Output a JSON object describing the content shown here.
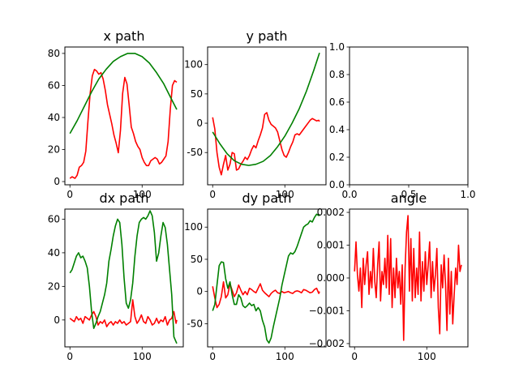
{
  "chart_data": [
    {
      "id": "x-path",
      "type": "line",
      "title": "x path",
      "xlim": [
        -7,
        157
      ],
      "ylim": [
        -2,
        84
      ],
      "xticks": [
        0,
        100
      ],
      "yticks": [
        0,
        20,
        40,
        60,
        80
      ],
      "series": [
        {
          "color": "#ff0000",
          "x": [
            0,
            3,
            7,
            10,
            13,
            16,
            19,
            22,
            25,
            28,
            31,
            34,
            37,
            40,
            43,
            46,
            49,
            52,
            55,
            58,
            61,
            64,
            67,
            70,
            73,
            76,
            79,
            82,
            85,
            88,
            91,
            94,
            97,
            100,
            103,
            106,
            109,
            112,
            115,
            118,
            121,
            124,
            127,
            130,
            133,
            136,
            139,
            142,
            145,
            148
          ],
          "y": [
            2,
            3,
            2,
            4,
            9,
            10,
            12,
            19,
            38,
            55,
            66,
            70,
            69,
            67,
            68,
            64,
            57,
            48,
            42,
            36,
            29,
            24,
            18,
            32,
            55,
            65,
            61,
            48,
            34,
            30,
            25,
            22,
            20,
            15,
            12,
            10,
            10,
            13,
            14,
            15,
            14,
            11,
            12,
            14,
            16,
            25,
            45,
            60,
            63,
            62
          ]
        },
        {
          "color": "#008000",
          "x": [
            0,
            10,
            20,
            30,
            40,
            50,
            60,
            70,
            80,
            90,
            100,
            110,
            120,
            130,
            140,
            148
          ],
          "y": [
            30,
            38,
            47,
            56,
            64,
            70,
            75,
            78,
            80,
            80,
            78,
            74,
            68,
            61,
            52,
            45
          ]
        }
      ]
    },
    {
      "id": "y-path",
      "type": "line",
      "title": "y path",
      "xlim": [
        -7,
        157
      ],
      "ylim": [
        -105,
        130
      ],
      "xticks": [
        0,
        100
      ],
      "yticks": [
        -50,
        0,
        50,
        100
      ],
      "series": [
        {
          "color": "#ff0000",
          "x": [
            0,
            3,
            6,
            9,
            12,
            15,
            18,
            21,
            24,
            27,
            30,
            33,
            36,
            39,
            42,
            45,
            48,
            51,
            54,
            57,
            60,
            63,
            66,
            69,
            72,
            75,
            78,
            81,
            84,
            87,
            90,
            93,
            96,
            99,
            102,
            105,
            108,
            111,
            114,
            117,
            120,
            123,
            126,
            129,
            132,
            135,
            138,
            141,
            144,
            147,
            148
          ],
          "y": [
            10,
            -10,
            -50,
            -75,
            -88,
            -70,
            -55,
            -80,
            -70,
            -50,
            -52,
            -80,
            -78,
            -70,
            -65,
            -58,
            -62,
            -55,
            -45,
            -38,
            -42,
            -30,
            -20,
            -8,
            15,
            18,
            5,
            -2,
            -5,
            -8,
            -15,
            -30,
            -45,
            -55,
            -58,
            -50,
            -40,
            -32,
            -20,
            -18,
            -20,
            -15,
            -10,
            -5,
            0,
            5,
            8,
            6,
            4,
            5,
            3
          ]
        },
        {
          "color": "#008000",
          "x": [
            0,
            10,
            20,
            30,
            40,
            50,
            60,
            70,
            80,
            90,
            100,
            110,
            120,
            130,
            140,
            148
          ],
          "y": [
            -15,
            -35,
            -52,
            -64,
            -70,
            -72,
            -70,
            -65,
            -55,
            -40,
            -22,
            0,
            25,
            55,
            90,
            120
          ]
        }
      ]
    },
    {
      "id": "empty",
      "type": "line",
      "title": "",
      "xlim": [
        0,
        1
      ],
      "ylim": [
        0,
        1
      ],
      "xticks": [
        0.0,
        0.5,
        1.0
      ],
      "xtick_labels": [
        "0.0",
        "0.5",
        "1.0"
      ],
      "yticks": [
        0.0,
        0.2,
        0.4,
        0.6,
        0.8,
        1.0
      ],
      "ytick_labels": [
        "0.0",
        "0.2",
        "0.4",
        "0.6",
        "0.8",
        "1.0"
      ],
      "series": []
    },
    {
      "id": "dx-path",
      "type": "line",
      "title": "dx path",
      "xlim": [
        -7,
        157
      ],
      "ylim": [
        -16,
        66
      ],
      "xticks": [
        0,
        100
      ],
      "yticks": [
        0,
        20,
        40,
        60
      ],
      "series": [
        {
          "color": "#ff0000",
          "x": [
            0,
            3,
            6,
            9,
            12,
            15,
            18,
            21,
            24,
            27,
            30,
            33,
            36,
            39,
            42,
            45,
            48,
            51,
            54,
            57,
            60,
            63,
            66,
            69,
            72,
            75,
            78,
            81,
            84,
            87,
            90,
            93,
            96,
            99,
            102,
            105,
            108,
            111,
            114,
            117,
            120,
            123,
            126,
            129,
            132,
            135,
            138,
            141,
            144,
            147,
            148
          ],
          "y": [
            1,
            0,
            -1,
            2,
            0,
            1,
            -2,
            2,
            1,
            0,
            3,
            5,
            2,
            -3,
            -1,
            -2,
            0,
            -4,
            -2,
            -1,
            -3,
            -1,
            -2,
            0,
            -2,
            -1,
            -3,
            -2,
            -1,
            12,
            2,
            -2,
            0,
            3,
            -1,
            -2,
            2,
            0,
            -3,
            -2,
            1,
            -2,
            0,
            -1,
            2,
            -3,
            0,
            1,
            5,
            -2,
            0
          ]
        },
        {
          "color": "#008000",
          "x": [
            0,
            3,
            6,
            9,
            12,
            15,
            18,
            21,
            24,
            27,
            30,
            33,
            36,
            39,
            42,
            45,
            48,
            51,
            54,
            57,
            60,
            63,
            66,
            69,
            72,
            75,
            78,
            81,
            84,
            87,
            90,
            93,
            96,
            99,
            102,
            105,
            108,
            111,
            114,
            117,
            120,
            123,
            126,
            129,
            132,
            135,
            138,
            141,
            144,
            147,
            148
          ],
          "y": [
            28,
            30,
            34,
            38,
            40,
            37,
            38,
            35,
            31,
            20,
            5,
            -5,
            -2,
            2,
            5,
            10,
            15,
            22,
            35,
            42,
            50,
            56,
            60,
            58,
            45,
            25,
            10,
            7,
            12,
            22,
            38,
            50,
            58,
            60,
            61,
            60,
            62,
            65,
            62,
            52,
            35,
            40,
            50,
            58,
            55,
            45,
            30,
            15,
            -10,
            -13,
            -14
          ]
        }
      ]
    },
    {
      "id": "dy-path",
      "type": "line",
      "title": "dy path",
      "xlim": [
        -7,
        157
      ],
      "ylim": [
        -86,
        128
      ],
      "xticks": [
        0,
        100
      ],
      "yticks": [
        -50,
        0,
        50,
        100
      ],
      "series": [
        {
          "color": "#ff0000",
          "x": [
            0,
            3,
            6,
            9,
            12,
            15,
            18,
            21,
            24,
            27,
            30,
            33,
            36,
            39,
            42,
            45,
            48,
            51,
            54,
            57,
            60,
            63,
            66,
            69,
            72,
            75,
            78,
            81,
            84,
            87,
            90,
            93,
            96,
            99,
            102,
            105,
            108,
            111,
            114,
            117,
            120,
            123,
            126,
            129,
            132,
            135,
            138,
            141,
            144,
            147,
            148
          ],
          "y": [
            8,
            -10,
            -25,
            -20,
            -8,
            15,
            -10,
            -5,
            12,
            2,
            -8,
            -2,
            10,
            2,
            -5,
            0,
            -5,
            5,
            3,
            0,
            -2,
            5,
            12,
            2,
            -2,
            -5,
            -8,
            -3,
            0,
            2,
            -2,
            -3,
            0,
            -2,
            -1,
            0,
            -2,
            -3,
            0,
            1,
            0,
            -2,
            3,
            2,
            0,
            -2,
            -1,
            3,
            5,
            -3,
            0
          ]
        },
        {
          "color": "#008000",
          "x": [
            0,
            3,
            6,
            9,
            12,
            15,
            18,
            21,
            24,
            27,
            30,
            33,
            36,
            39,
            42,
            45,
            48,
            51,
            54,
            57,
            60,
            63,
            66,
            69,
            72,
            75,
            78,
            81,
            84,
            87,
            90,
            93,
            96,
            99,
            102,
            105,
            108,
            111,
            114,
            117,
            120,
            123,
            126,
            129,
            132,
            135,
            138,
            141,
            144,
            147,
            148
          ],
          "y": [
            -30,
            -20,
            10,
            40,
            46,
            45,
            20,
            5,
            15,
            -5,
            -20,
            -20,
            -5,
            -10,
            -22,
            -25,
            -22,
            -18,
            -22,
            -20,
            -30,
            -25,
            -30,
            -45,
            -55,
            -75,
            -80,
            -72,
            -55,
            -40,
            -25,
            -10,
            10,
            25,
            40,
            55,
            60,
            58,
            62,
            70,
            80,
            90,
            100,
            103,
            105,
            110,
            108,
            115,
            120,
            118,
            120
          ]
        }
      ]
    },
    {
      "id": "angle",
      "type": "line",
      "title": "angle",
      "xlim": [
        -7,
        157
      ],
      "ylim": [
        -0.0021,
        0.0021
      ],
      "xticks": [
        0,
        100
      ],
      "yticks": [
        -0.002,
        -0.001,
        0.0,
        0.001,
        0.002
      ],
      "ytick_labels": [
        "−0.002",
        "−0.001",
        "0.000",
        "0.001",
        "0.002"
      ],
      "series": [
        {
          "color": "#ff0000",
          "x": [
            0,
            2,
            4,
            6,
            8,
            10,
            12,
            14,
            16,
            18,
            20,
            22,
            24,
            26,
            28,
            30,
            32,
            34,
            36,
            38,
            40,
            42,
            44,
            46,
            48,
            50,
            52,
            54,
            56,
            58,
            60,
            62,
            64,
            66,
            68,
            70,
            72,
            74,
            76,
            78,
            80,
            82,
            84,
            86,
            88,
            90,
            92,
            94,
            96,
            98,
            100,
            102,
            104,
            106,
            108,
            110,
            112,
            114,
            116,
            118,
            120,
            122,
            124,
            126,
            128,
            130,
            132,
            134,
            136,
            138,
            140,
            142,
            144,
            146,
            148
          ],
          "y": [
            0.0002,
            0.0011,
            0.0001,
            -0.0004,
            0.0003,
            -0.0009,
            0.0006,
            -0.0002,
            0.0004,
            0.0008,
            -0.0005,
            0.0002,
            -0.0003,
            0.0009,
            -0.0001,
            -0.0006,
            0.0004,
            0.0011,
            -0.0007,
            0.0002,
            -0.0002,
            0.0006,
            -0.0003,
            0.0013,
            -0.0005,
            0.0012,
            -0.0009,
            0.0003,
            -0.0006,
            0.0006,
            -0.0003,
            0.0002,
            -0.0008,
            0.0004,
            -0.0019,
            0.0003,
            0.0014,
            0.0019,
            -0.0004,
            0.0012,
            -0.0007,
            0.0009,
            -0.0006,
            0.0003,
            -0.0005,
            0.0014,
            -0.0007,
            0.0005,
            -0.0004,
            0.0008,
            -0.0002,
            0.0004,
            0.0011,
            -0.0006,
            0.0005,
            -0.0004,
            0.0001,
            0.0009,
            -0.0009,
            -0.0017,
            0.0004,
            -0.0003,
            0.0007,
            -0.0002,
            -0.0016,
            0.0006,
            -0.0011,
            0.0002,
            -0.0014,
            -0.0005,
            0.0003,
            -0.0002,
            0.001,
            0.0002,
            0.0004
          ]
        }
      ]
    }
  ]
}
